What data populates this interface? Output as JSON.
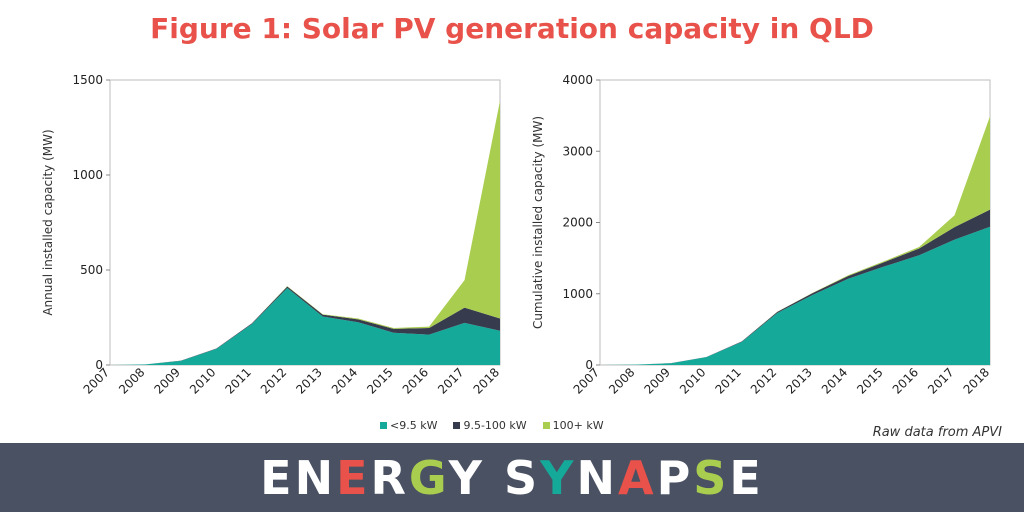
{
  "title": "Figure 1: Solar PV generation capacity in QLD",
  "colors": {
    "title": "#e8524a",
    "small": "#15a99a",
    "medium": "#363b4d",
    "large": "#a9cd4f",
    "footer_bg": "#4a5163"
  },
  "chart_data": [
    {
      "type": "area",
      "stacked": true,
      "title": "",
      "xlabel": "",
      "ylabel": "Annual installed capacity (MW)",
      "x": [
        "2007",
        "2008",
        "2009",
        "2010",
        "2011",
        "2012",
        "2013",
        "2014",
        "2015",
        "2016",
        "2017",
        "2018"
      ],
      "ylim": [
        0,
        1500
      ],
      "yticks": [
        "0",
        "500",
        "1000",
        "1500"
      ],
      "series": [
        {
          "name": "<9.5 kW",
          "color": "#15a99a",
          "values": [
            0,
            3,
            22,
            85,
            215,
            405,
            255,
            225,
            170,
            160,
            222,
            180
          ]
        },
        {
          "name": "9.5-100 kW",
          "color": "#363b4d",
          "values": [
            0,
            0,
            1,
            2,
            4,
            8,
            10,
            15,
            20,
            35,
            80,
            65
          ]
        },
        {
          "name": "100+ kW",
          "color": "#a9cd4f",
          "values": [
            0,
            0,
            0,
            0,
            0,
            2,
            2,
            5,
            5,
            7,
            145,
            1145
          ]
        }
      ]
    },
    {
      "type": "area",
      "stacked": true,
      "title": "",
      "xlabel": "",
      "ylabel": "Cumulative installed capacity (MW)",
      "x": [
        "2007",
        "2008",
        "2009",
        "2010",
        "2011",
        "2012",
        "2013",
        "2014",
        "2015",
        "2016",
        "2017",
        "2018"
      ],
      "ylim": [
        0,
        4000
      ],
      "yticks": [
        "0",
        "1000",
        "2000",
        "3000",
        "4000"
      ],
      "series": [
        {
          "name": "<9.5 kW",
          "color": "#15a99a",
          "values": [
            0,
            5,
            25,
            110,
            325,
            730,
            985,
            1210,
            1380,
            1540,
            1760,
            1940
          ]
        },
        {
          "name": "9.5-100 kW",
          "color": "#363b4d",
          "values": [
            0,
            0,
            1,
            3,
            7,
            15,
            25,
            40,
            60,
            95,
            175,
            240
          ]
        },
        {
          "name": "100+ kW",
          "color": "#a9cd4f",
          "values": [
            0,
            0,
            0,
            0,
            0,
            2,
            4,
            9,
            14,
            21,
            166,
            1311
          ]
        }
      ]
    }
  ],
  "legend": [
    {
      "label": "<9.5 kW",
      "color": "#15a99a"
    },
    {
      "label": "9.5-100 kW",
      "color": "#363b4d"
    },
    {
      "label": "100+ kW",
      "color": "#a9cd4f"
    }
  ],
  "source": "Raw data from APVI",
  "footer": {
    "brand_letters": [
      {
        "ch": "E",
        "color": "#ffffff"
      },
      {
        "ch": "N",
        "color": "#ffffff"
      },
      {
        "ch": "E",
        "color": "#e8524a"
      },
      {
        "ch": "R",
        "color": "#ffffff"
      },
      {
        "ch": "G",
        "color": "#a9cd4f"
      },
      {
        "ch": "Y",
        "color": "#ffffff"
      },
      {
        "ch": " ",
        "color": "#ffffff"
      },
      {
        "ch": "S",
        "color": "#ffffff"
      },
      {
        "ch": "Y",
        "color": "#15a99a"
      },
      {
        "ch": "N",
        "color": "#ffffff"
      },
      {
        "ch": "A",
        "color": "#e8524a"
      },
      {
        "ch": "P",
        "color": "#ffffff"
      },
      {
        "ch": "S",
        "color": "#a9cd4f"
      },
      {
        "ch": "E",
        "color": "#ffffff"
      }
    ]
  }
}
